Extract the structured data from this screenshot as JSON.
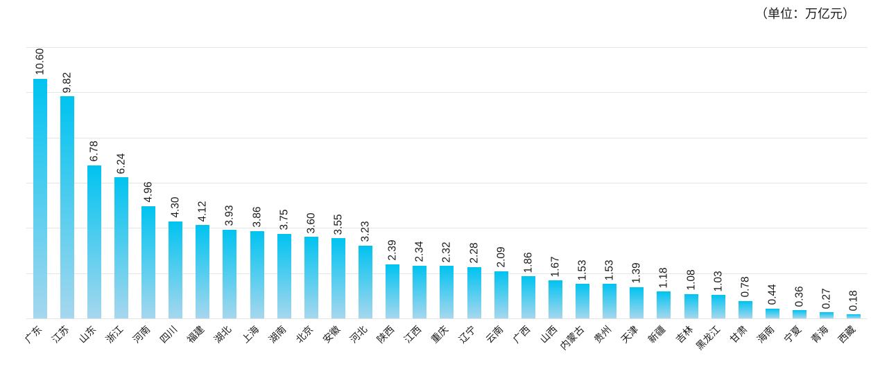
{
  "chart_data": {
    "type": "bar",
    "title": "",
    "unit_label": "（单位：万亿元）",
    "categories": [
      "广东",
      "江苏",
      "山东",
      "浙江",
      "河南",
      "四川",
      "福建",
      "湖北",
      "上海",
      "湖南",
      "北京",
      "安徽",
      "河北",
      "陕西",
      "江西",
      "重庆",
      "辽宁",
      "云南",
      "广西",
      "山西",
      "内蒙古",
      "贵州",
      "天津",
      "新疆",
      "吉林",
      "黑龙江",
      "甘肃",
      "海南",
      "宁夏",
      "青海",
      "西藏"
    ],
    "values": [
      10.6,
      9.82,
      6.78,
      6.24,
      4.96,
      4.3,
      4.12,
      3.93,
      3.86,
      3.75,
      3.6,
      3.55,
      3.23,
      2.39,
      2.34,
      2.32,
      2.28,
      2.09,
      1.86,
      1.67,
      1.53,
      1.53,
      1.39,
      1.18,
      1.08,
      1.03,
      0.78,
      0.44,
      0.36,
      0.27,
      0.18
    ],
    "value_label_format": "2-decimals",
    "xlabel": "",
    "ylabel": "",
    "ylim": [
      0,
      12
    ],
    "gridline_step": 2,
    "grid": true,
    "legend": false,
    "colors": {
      "bar_gradient_top": "#00c3f0",
      "bar_gradient_bottom": "#a6d7ee",
      "gridline": "#e4e4e4",
      "text": "#1a1a1a"
    }
  }
}
